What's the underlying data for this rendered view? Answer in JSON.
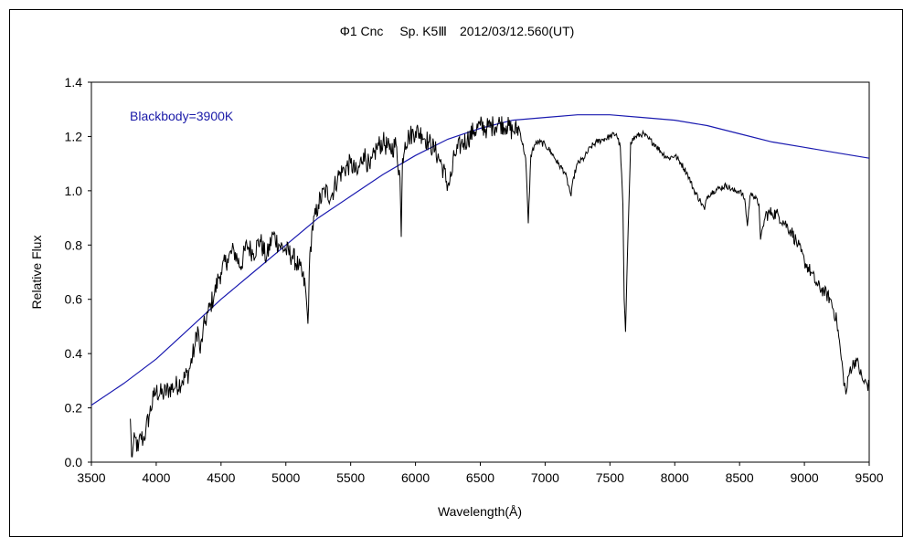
{
  "chart_data": {
    "type": "line",
    "title": "Φ1 Cnc　 Sp. K5Ⅲ　2012/03/12.560(UT)",
    "xlabel": "Wavelength(Å)",
    "ylabel": "Relative Flux",
    "xlim": [
      3500,
      9500
    ],
    "ylim": [
      0,
      1.4
    ],
    "x_ticks": [
      3500,
      4000,
      4500,
      5000,
      5500,
      6000,
      6500,
      7000,
      7500,
      8000,
      8500,
      9000,
      9500
    ],
    "y_ticks": [
      0.0,
      0.2,
      0.4,
      0.6,
      0.8,
      1.0,
      1.2,
      1.4
    ],
    "grid": false,
    "annotation": "Blackbody=3900K",
    "colors": {
      "spectrum": "#000000",
      "blackbody": "#1a1ab0",
      "annotation": "#1a1aa8"
    },
    "series": [
      {
        "name": "Blackbody=3900K",
        "x": [
          3500,
          3750,
          4000,
          4250,
          4500,
          4750,
          5000,
          5250,
          5500,
          5750,
          6000,
          6250,
          6500,
          6750,
          7000,
          7250,
          7500,
          7750,
          8000,
          8250,
          8500,
          8750,
          9000,
          9250,
          9500
        ],
        "y": [
          0.21,
          0.29,
          0.38,
          0.49,
          0.6,
          0.7,
          0.8,
          0.9,
          0.98,
          1.06,
          1.13,
          1.19,
          1.23,
          1.26,
          1.27,
          1.28,
          1.28,
          1.27,
          1.26,
          1.24,
          1.21,
          1.18,
          1.16,
          1.14,
          1.12
        ]
      },
      {
        "name": "",
        "x": [
          3800,
          3810,
          3820,
          3840,
          3860,
          3880,
          3900,
          3920,
          3950,
          3980,
          4000,
          4050,
          4100,
          4150,
          4200,
          4250,
          4300,
          4320,
          4340,
          4360,
          4380,
          4400,
          4420,
          4450,
          4480,
          4500,
          4550,
          4600,
          4650,
          4700,
          4750,
          4800,
          4850,
          4900,
          4950,
          5000,
          5050,
          5100,
          5150,
          5170,
          5180,
          5200,
          5250,
          5300,
          5350,
          5400,
          5450,
          5500,
          5550,
          5600,
          5650,
          5700,
          5750,
          5800,
          5850,
          5880,
          5890,
          5900,
          5920,
          5950,
          6000,
          6050,
          6100,
          6150,
          6200,
          6250,
          6280,
          6300,
          6350,
          6400,
          6450,
          6500,
          6550,
          6600,
          6650,
          6700,
          6750,
          6800,
          6850,
          6870,
          6890,
          6920,
          6950,
          7000,
          7050,
          7100,
          7150,
          7180,
          7200,
          7220,
          7250,
          7300,
          7350,
          7400,
          7450,
          7500,
          7550,
          7580,
          7600,
          7610,
          7620,
          7640,
          7660,
          7700,
          7750,
          7800,
          7850,
          7900,
          7950,
          8000,
          8050,
          8100,
          8150,
          8200,
          8230,
          8250,
          8300,
          8350,
          8400,
          8450,
          8500,
          8540,
          8560,
          8580,
          8600,
          8650,
          8662,
          8700,
          8750,
          8800,
          8850,
          8900,
          8950,
          9000,
          9050,
          9100,
          9150,
          9200,
          9250,
          9280,
          9300,
          9320,
          9350,
          9400,
          9450,
          9500
        ],
        "y": [
          0.16,
          0.02,
          0.05,
          0.09,
          0.04,
          0.1,
          0.08,
          0.12,
          0.18,
          0.24,
          0.26,
          0.25,
          0.27,
          0.28,
          0.3,
          0.33,
          0.43,
          0.5,
          0.4,
          0.48,
          0.52,
          0.55,
          0.58,
          0.62,
          0.68,
          0.7,
          0.75,
          0.78,
          0.72,
          0.8,
          0.77,
          0.82,
          0.75,
          0.84,
          0.8,
          0.78,
          0.76,
          0.72,
          0.65,
          0.51,
          0.7,
          0.85,
          0.95,
          1.0,
          0.98,
          1.05,
          1.08,
          1.1,
          1.06,
          1.14,
          1.08,
          1.16,
          1.18,
          1.15,
          1.17,
          1.05,
          0.83,
          1.12,
          1.18,
          1.2,
          1.22,
          1.21,
          1.18,
          1.15,
          1.1,
          1.02,
          1.06,
          1.13,
          1.17,
          1.19,
          1.22,
          1.24,
          1.23,
          1.24,
          1.25,
          1.24,
          1.22,
          1.23,
          1.12,
          0.88,
          1.13,
          1.17,
          1.18,
          1.17,
          1.14,
          1.1,
          1.07,
          1.02,
          0.98,
          1.05,
          1.1,
          1.12,
          1.16,
          1.18,
          1.19,
          1.2,
          1.21,
          1.16,
          0.95,
          0.6,
          0.48,
          0.85,
          1.18,
          1.2,
          1.21,
          1.19,
          1.17,
          1.14,
          1.12,
          1.13,
          1.1,
          1.06,
          1.0,
          0.96,
          0.93,
          0.98,
          1.0,
          1.01,
          1.02,
          1.0,
          1.0,
          0.97,
          0.87,
          0.98,
          0.99,
          0.95,
          0.82,
          0.91,
          0.92,
          0.91,
          0.88,
          0.85,
          0.8,
          0.74,
          0.7,
          0.65,
          0.63,
          0.6,
          0.52,
          0.4,
          0.32,
          0.25,
          0.34,
          0.38,
          0.3,
          0.28
        ]
      }
    ]
  }
}
